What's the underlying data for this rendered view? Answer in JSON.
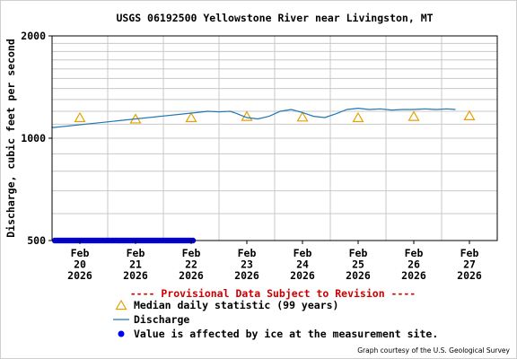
{
  "chart_data": {
    "type": "line",
    "title": "USGS 06192500 Yellowstone River near Livingston, MT",
    "ylabel": "Discharge, cubic feet per second",
    "yscale": "log",
    "ylim": [
      500,
      2000
    ],
    "yticks": [
      {
        "value": 500,
        "label": "500"
      },
      {
        "value": 1000,
        "label": "1000"
      },
      {
        "value": 2000,
        "label": "2000"
      }
    ],
    "xlim": [
      19.5,
      27.5
    ],
    "xticks": [
      {
        "value": 20,
        "lines": [
          "Feb",
          "20",
          "2026"
        ]
      },
      {
        "value": 21,
        "lines": [
          "Feb",
          "21",
          "2026"
        ]
      },
      {
        "value": 22,
        "lines": [
          "Feb",
          "22",
          "2026"
        ]
      },
      {
        "value": 23,
        "lines": [
          "Feb",
          "23",
          "2026"
        ]
      },
      {
        "value": 24,
        "lines": [
          "Feb",
          "24",
          "2026"
        ]
      },
      {
        "value": 25,
        "lines": [
          "Feb",
          "25",
          "2026"
        ]
      },
      {
        "value": 26,
        "lines": [
          "Feb",
          "26",
          "2026"
        ]
      },
      {
        "value": 27,
        "lines": [
          "Feb",
          "27",
          "2026"
        ]
      }
    ],
    "grid": true,
    "series": [
      {
        "name": "Median daily statistic (99 years)",
        "marker": "triangle",
        "color": "#e8a000",
        "x": [
          20,
          21,
          22,
          23,
          24,
          25,
          26,
          27
        ],
        "y": [
          1150,
          1140,
          1150,
          1160,
          1155,
          1150,
          1160,
          1165
        ]
      },
      {
        "name": "Discharge",
        "line": true,
        "color": "#1f77b4",
        "x": [
          19.5,
          19.52,
          22.1,
          22.3,
          22.5,
          22.7,
          22.8,
          23.0,
          23.2,
          23.4,
          23.6,
          23.8,
          24.0,
          24.2,
          24.4,
          24.6,
          24.8,
          25.0,
          25.2,
          25.4,
          25.6,
          25.8,
          26.0,
          26.2,
          26.4,
          26.6,
          26.75
        ],
        "y": [
          1080,
          1075,
          1190,
          1200,
          1195,
          1200,
          1185,
          1150,
          1140,
          1160,
          1200,
          1215,
          1190,
          1160,
          1150,
          1180,
          1215,
          1225,
          1215,
          1220,
          1210,
          1215,
          1215,
          1220,
          1215,
          1220,
          1215
        ]
      },
      {
        "name": "Value is affected by ice at the measurement site.",
        "marker": "dot",
        "color": "#0000ff",
        "x_range": [
          19.5,
          22.1
        ],
        "y": 500
      }
    ],
    "annotations": [
      {
        "text": "---- Provisional Data Subject to Revision ----",
        "color": "#cc0000"
      }
    ],
    "legend": {
      "position": "bottom-left",
      "items": [
        {
          "symbol": "triangle",
          "color": "#e8a000",
          "label": "Median daily statistic (99 years)"
        },
        {
          "symbol": "line",
          "color": "#1f77b4",
          "label": "Discharge"
        },
        {
          "symbol": "dot",
          "color": "#0000ff",
          "label": "Value is affected by ice at the measurement site."
        }
      ]
    },
    "credit": "Graph courtesy of the U.S. Geological Survey"
  }
}
